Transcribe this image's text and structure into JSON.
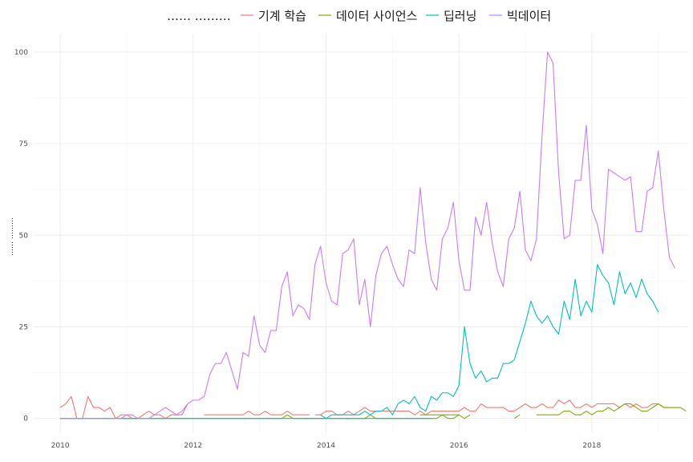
{
  "chart_data": {
    "type": "line",
    "title": "",
    "xlabel": "",
    "ylabel": "…… ………",
    "legend_title": "…… ………",
    "legend_position": "top",
    "grid": true,
    "xlim": [
      2009.6,
      2019.45
    ],
    "ylim": [
      -4,
      105
    ],
    "x_ticks": [
      2010,
      2012,
      2014,
      2016,
      2018
    ],
    "x_tick_labels": [
      "2010",
      "2012",
      "2014",
      "2016",
      "2018"
    ],
    "y_ticks": [
      0,
      25,
      50,
      75,
      100
    ],
    "y_tick_labels": [
      "0",
      "25",
      "50",
      "75",
      "100"
    ],
    "series": [
      {
        "name": "기계 학습",
        "color": "#F8766D",
        "segments": [
          {
            "start": 2010.0,
            "values": [
              3,
              4,
              6,
              0,
              0,
              6,
              3,
              3,
              2,
              3,
              0,
              1,
              1,
              0,
              0,
              1,
              2,
              1,
              1,
              0,
              1,
              1,
              1,
              4
            ]
          },
          {
            "start": 2012.1667,
            "values": [
              1,
              1,
              1,
              1,
              1,
              1,
              1,
              1,
              2,
              1,
              1,
              2,
              1,
              1,
              1,
              2,
              1,
              1,
              1,
              1
            ]
          },
          {
            "start": 2013.8333,
            "values": [
              1,
              1,
              2,
              2,
              1,
              1,
              2,
              1,
              2,
              3,
              2,
              2,
              2,
              2,
              2,
              2,
              2,
              2,
              1,
              2,
              1,
              2,
              2,
              2,
              2,
              2,
              2,
              3,
              2,
              2,
              4,
              3,
              3,
              3,
              3,
              2,
              2,
              3,
              4,
              3,
              3,
              4,
              3,
              3,
              5,
              4,
              5,
              3,
              3,
              4,
              3,
              4,
              4,
              4,
              4,
              3,
              4,
              3,
              4,
              3,
              3,
              4,
              4,
              3,
              3,
              3
            ]
          }
        ]
      },
      {
        "name": "데이터 사이언스",
        "color": "#7CAE00",
        "segments": [
          {
            "start": 2010.0,
            "values": [
              0,
              0,
              0,
              0,
              0,
              0,
              0,
              0,
              0,
              0,
              0,
              0,
              0,
              0,
              0,
              0,
              0,
              0,
              0,
              0,
              0,
              0,
              0,
              0,
              0,
              0,
              0,
              0,
              0,
              0,
              0,
              0,
              0,
              0,
              0,
              0,
              0,
              0,
              0,
              0,
              0,
              1,
              0,
              0,
              0,
              0,
              0,
              0,
              0,
              0,
              0,
              0,
              0,
              0,
              0,
              0,
              1,
              0,
              0,
              0,
              0,
              0,
              0,
              0,
              0,
              0,
              0,
              0,
              0,
              1,
              0,
              0,
              1,
              0,
              1
            ]
          },
          {
            "start": 2013.6667,
            "values": [
              0,
              0
            ]
          },
          {
            "start": 2013.9167,
            "values": [
              0,
              0
            ]
          },
          {
            "start": 2014.3333,
            "values": [
              0
            ]
          },
          {
            "start": 2014.5833,
            "values": [
              0
            ]
          },
          {
            "start": 2015.4167,
            "values": [
              1,
              1,
              1,
              1,
              1,
              1,
              1,
              1
            ]
          },
          {
            "start": 2016.8333,
            "values": [
              0,
              1
            ]
          },
          {
            "start": 2017.1667,
            "values": [
              1,
              1,
              1,
              1,
              1,
              2,
              2,
              1,
              1,
              2,
              1,
              2,
              2,
              3,
              2,
              3,
              4,
              4,
              3,
              2,
              2,
              3,
              4,
              3,
              3,
              3,
              3,
              2
            ]
          }
        ]
      },
      {
        "name": "딥러닝",
        "color": "#00BFC4",
        "segments": [
          {
            "start": 2010.0,
            "values": [
              0,
              0,
              0,
              0,
              0,
              0,
              0,
              0,
              0,
              0,
              0,
              0,
              0,
              0,
              0,
              0,
              0,
              0,
              0,
              0,
              0,
              0,
              0,
              0,
              0,
              0,
              0,
              0,
              0,
              0,
              0,
              0,
              0,
              0,
              0,
              0,
              0,
              0,
              0,
              0,
              0,
              0,
              0,
              0,
              0,
              0,
              0,
              0,
              0,
              0,
              0,
              0,
              0,
              0,
              0,
              0,
              0,
              0,
              0,
              0,
              0,
              0,
              0,
              0,
              0,
              0,
              0,
              0
            ]
          },
          {
            "start": 2013.9167,
            "values": [
              1,
              0,
              1,
              1,
              1,
              1,
              1,
              1,
              2,
              1,
              2,
              2,
              3,
              1,
              4,
              5,
              4,
              6,
              3,
              2,
              6,
              5,
              7,
              7,
              6,
              9,
              25,
              15,
              11,
              13,
              10,
              11,
              11,
              15,
              15,
              16,
              21,
              26,
              32,
              28,
              26,
              28,
              25,
              23,
              32,
              27,
              38,
              28,
              32,
              29,
              42,
              39,
              37,
              31,
              40,
              34,
              37,
              33,
              38,
              34,
              32,
              29
            ]
          }
        ]
      },
      {
        "name": "빅데이터",
        "color": "#C77CFF",
        "segments": [
          {
            "start": 2010.0,
            "values": [
              0,
              0,
              0,
              0,
              0,
              0,
              0,
              0,
              0,
              0,
              0,
              0,
              1,
              1,
              0,
              0,
              0,
              1,
              2,
              3,
              2,
              1,
              2,
              4,
              5,
              5,
              6,
              12,
              15,
              15,
              18,
              13,
              8,
              18,
              17,
              28,
              20,
              18,
              24,
              24,
              36,
              40,
              28,
              31,
              30,
              27,
              42,
              47,
              37,
              32,
              31,
              45,
              46,
              49,
              31,
              38,
              25,
              39,
              45,
              47,
              42,
              38,
              36,
              46,
              45,
              63,
              48,
              38,
              35,
              49,
              52,
              59,
              43,
              35,
              35,
              55,
              50,
              59,
              48,
              40,
              36,
              49,
              52,
              62,
              46,
              43,
              49,
              77,
              100,
              97,
              67,
              49,
              50,
              65,
              65,
              80,
              57,
              53,
              45,
              68,
              67,
              66,
              65,
              66,
              51,
              51,
              62,
              63,
              73,
              57,
              44,
              41
            ]
          }
        ]
      }
    ]
  }
}
